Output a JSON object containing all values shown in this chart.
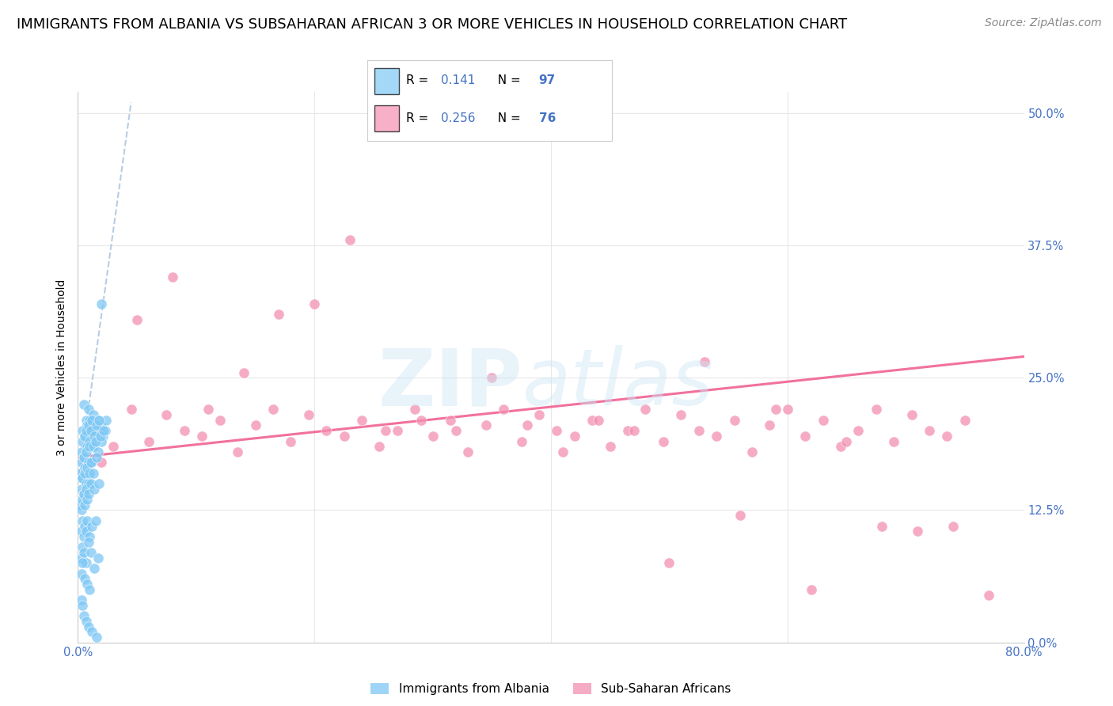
{
  "title": "IMMIGRANTS FROM ALBANIA VS SUBSAHARAN AFRICAN 3 OR MORE VEHICLES IN HOUSEHOLD CORRELATION CHART",
  "source": "Source: ZipAtlas.com",
  "ylabel": "3 or more Vehicles in Household",
  "ytick_values": [
    0.0,
    12.5,
    25.0,
    37.5,
    50.0
  ],
  "xlim": [
    0.0,
    80.0
  ],
  "ylim": [
    0.0,
    52.0
  ],
  "r_albania": 0.141,
  "n_albania": 97,
  "r_subsaharan": 0.256,
  "n_subsaharan": 76,
  "albania_color": "#7ec8f5",
  "subsaharan_color": "#f48fb1",
  "albania_line_color": "#aad4f0",
  "subsaharan_line_color": "#f06292",
  "legend_label_albania": "Immigrants from Albania",
  "legend_label_subsaharan": "Sub-Saharan Africans",
  "title_fontsize": 13,
  "source_fontsize": 10,
  "axis_fontsize": 10,
  "tick_fontsize": 10.5,
  "background_color": "#ffffff",
  "grid_color": "#e8e8e8",
  "tick_color": "#4472c4",
  "blue_text_color": "#4472c4",
  "albania_scatter_x": [
    0.4,
    0.5,
    0.6,
    0.7,
    0.8,
    0.9,
    1.0,
    1.1,
    1.2,
    1.3,
    1.5,
    1.7,
    1.9,
    2.1,
    2.4,
    0.3,
    0.4,
    0.5,
    0.6,
    0.7,
    0.8,
    0.9,
    1.0,
    1.1,
    1.2,
    1.4,
    1.6,
    1.8,
    2.0,
    2.3,
    0.2,
    0.3,
    0.4,
    0.5,
    0.6,
    0.7,
    0.8,
    0.9,
    1.0,
    1.2,
    1.3,
    1.5,
    1.7,
    1.9,
    2.2,
    0.3,
    0.4,
    0.5,
    0.6,
    0.7,
    0.8,
    0.9,
    1.0,
    1.1,
    1.3,
    1.6,
    0.2,
    0.3,
    0.4,
    0.5,
    0.6,
    0.7,
    0.8,
    0.9,
    1.1,
    1.4,
    1.8,
    0.3,
    0.4,
    0.5,
    0.6,
    0.7,
    0.8,
    1.0,
    1.2,
    1.5,
    0.3,
    0.4,
    0.5,
    0.7,
    0.9,
    1.1,
    1.4,
    1.7,
    0.3,
    0.4,
    0.6,
    0.8,
    1.0,
    0.3,
    0.4,
    0.5,
    0.7,
    0.9,
    1.2,
    1.6,
    2.0
  ],
  "albania_scatter_y": [
    20.0,
    22.5,
    19.5,
    21.0,
    20.5,
    22.0,
    21.0,
    19.0,
    20.0,
    21.5,
    20.0,
    21.0,
    20.5,
    19.5,
    21.0,
    18.0,
    19.0,
    17.5,
    19.5,
    20.0,
    18.5,
    20.5,
    19.0,
    20.0,
    21.0,
    19.5,
    20.5,
    21.0,
    19.0,
    20.0,
    16.0,
    17.0,
    15.5,
    17.5,
    16.5,
    18.0,
    16.0,
    17.0,
    18.5,
    17.0,
    18.5,
    19.0,
    18.0,
    19.5,
    20.0,
    14.5,
    15.5,
    14.0,
    16.0,
    15.0,
    16.5,
    15.0,
    16.0,
    17.0,
    16.0,
    17.5,
    13.0,
    12.5,
    13.5,
    14.0,
    13.0,
    14.5,
    13.5,
    14.0,
    15.0,
    14.5,
    15.0,
    10.5,
    11.5,
    10.0,
    11.0,
    10.5,
    11.5,
    10.0,
    11.0,
    11.5,
    8.0,
    9.0,
    8.5,
    7.5,
    9.5,
    8.5,
    7.0,
    8.0,
    6.5,
    7.5,
    6.0,
    5.5,
    5.0,
    4.0,
    3.5,
    2.5,
    2.0,
    1.5,
    1.0,
    0.5,
    32.0
  ],
  "subsaharan_scatter_x": [
    1.5,
    3.0,
    4.5,
    6.0,
    7.5,
    9.0,
    10.5,
    12.0,
    13.5,
    15.0,
    16.5,
    18.0,
    19.5,
    21.0,
    22.5,
    24.0,
    25.5,
    27.0,
    28.5,
    30.0,
    31.5,
    33.0,
    34.5,
    36.0,
    37.5,
    39.0,
    40.5,
    42.0,
    43.5,
    45.0,
    46.5,
    48.0,
    49.5,
    51.0,
    52.5,
    54.0,
    55.5,
    57.0,
    58.5,
    60.0,
    61.5,
    63.0,
    64.5,
    66.0,
    67.5,
    69.0,
    70.5,
    72.0,
    73.5,
    75.0,
    5.0,
    11.0,
    17.0,
    23.0,
    29.0,
    35.0,
    41.0,
    47.0,
    53.0,
    59.0,
    65.0,
    71.0,
    8.0,
    20.0,
    32.0,
    44.0,
    56.0,
    68.0,
    2.0,
    14.0,
    26.0,
    38.0,
    50.0,
    62.0,
    74.0,
    77.0
  ],
  "subsaharan_scatter_y": [
    20.0,
    18.5,
    22.0,
    19.0,
    21.5,
    20.0,
    19.5,
    21.0,
    18.0,
    20.5,
    22.0,
    19.0,
    21.5,
    20.0,
    19.5,
    21.0,
    18.5,
    20.0,
    22.0,
    19.5,
    21.0,
    18.0,
    20.5,
    22.0,
    19.0,
    21.5,
    20.0,
    19.5,
    21.0,
    18.5,
    20.0,
    22.0,
    19.0,
    21.5,
    20.0,
    19.5,
    21.0,
    18.0,
    20.5,
    22.0,
    19.5,
    21.0,
    18.5,
    20.0,
    22.0,
    19.0,
    21.5,
    20.0,
    19.5,
    21.0,
    30.5,
    22.0,
    31.0,
    38.0,
    21.0,
    25.0,
    18.0,
    20.0,
    26.5,
    22.0,
    19.0,
    10.5,
    34.5,
    32.0,
    20.0,
    21.0,
    12.0,
    11.0,
    17.0,
    25.5,
    20.0,
    20.5,
    7.5,
    5.0,
    11.0,
    4.5
  ],
  "albania_trend_x": [
    0.0,
    4.5
  ],
  "albania_trend_y": [
    15.0,
    51.0
  ],
  "subsaharan_trend_x": [
    0.0,
    80.0
  ],
  "subsaharan_trend_y": [
    17.5,
    27.0
  ]
}
